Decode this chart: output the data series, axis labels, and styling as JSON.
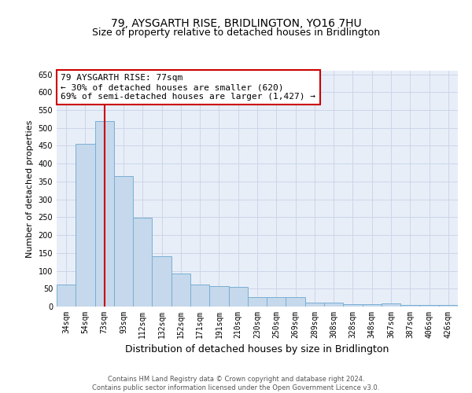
{
  "title1": "79, AYSGARTH RISE, BRIDLINGTON, YO16 7HU",
  "title2": "Size of property relative to detached houses in Bridlington",
  "xlabel": "Distribution of detached houses by size in Bridlington",
  "ylabel": "Number of detached properties",
  "footer1": "Contains HM Land Registry data © Crown copyright and database right 2024.",
  "footer2": "Contains public sector information licensed under the Open Government Licence v3.0.",
  "annotation_line1": "79 AYSGARTH RISE: 77sqm",
  "annotation_line2": "← 30% of detached houses are smaller (620)",
  "annotation_line3": "69% of semi-detached houses are larger (1,427) →",
  "bar_color": "#c5d8ec",
  "bar_edge_color": "#7aafd4",
  "vline_color": "#cc0000",
  "annotation_box_edgecolor": "#cc0000",
  "categories": [
    "34sqm",
    "54sqm",
    "73sqm",
    "93sqm",
    "112sqm",
    "132sqm",
    "152sqm",
    "171sqm",
    "191sqm",
    "210sqm",
    "230sqm",
    "250sqm",
    "269sqm",
    "289sqm",
    "308sqm",
    "328sqm",
    "348sqm",
    "367sqm",
    "387sqm",
    "406sqm",
    "426sqm"
  ],
  "values": [
    62,
    455,
    520,
    365,
    248,
    140,
    92,
    62,
    57,
    54,
    27,
    26,
    26,
    11,
    12,
    6,
    6,
    9,
    4,
    5,
    4
  ],
  "ylim": [
    0,
    660
  ],
  "yticks": [
    0,
    50,
    100,
    150,
    200,
    250,
    300,
    350,
    400,
    450,
    500,
    550,
    600,
    650
  ],
  "vline_x": 2.0,
  "grid_color": "#ccd6e8",
  "bg_color": "#e8eef8",
  "title1_fontsize": 10,
  "title2_fontsize": 9,
  "ylabel_fontsize": 8,
  "xlabel_fontsize": 9,
  "tick_fontsize": 7,
  "footer_fontsize": 6,
  "ann_fontsize": 8
}
